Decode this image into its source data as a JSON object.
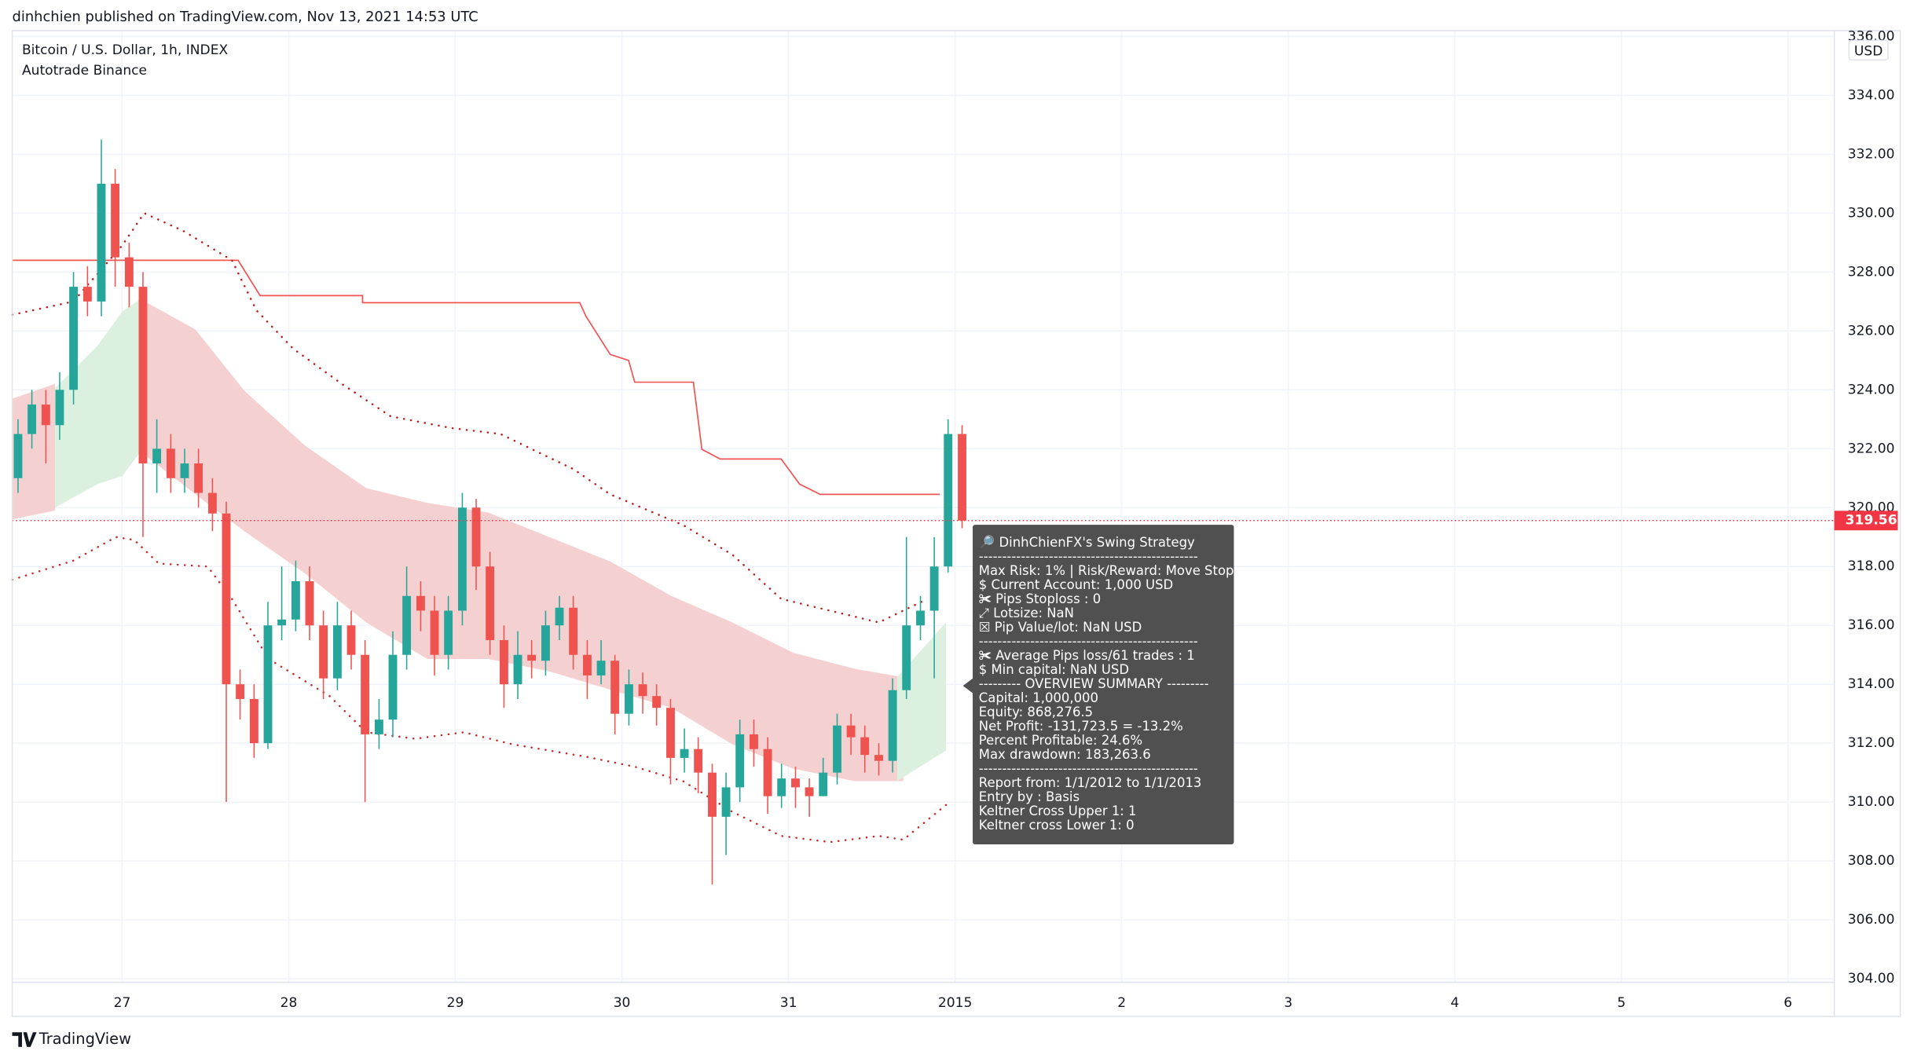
{
  "header": {
    "byline": "dinhchien published on TradingView.com, Nov 13, 2021 14:53 UTC",
    "brand": "TradingView"
  },
  "chart_data": {
    "type": "candlestick",
    "title": "Bitcoin / U.S. Dollar, 1h, INDEX",
    "subtitle": "Autotrade Binance",
    "y_unit": "USD",
    "up_color": "#26a69a",
    "down_color": "#ef5350",
    "grid": true,
    "xlim": [
      -0.66,
      10.278
    ],
    "xticks": [
      {
        "value": 0,
        "label": "27"
      },
      {
        "value": 1,
        "label": "28"
      },
      {
        "value": 2,
        "label": "29"
      },
      {
        "value": 3,
        "label": "30"
      },
      {
        "value": 4,
        "label": "31"
      },
      {
        "value": 5,
        "label": "2015"
      },
      {
        "value": 6,
        "label": "2"
      },
      {
        "value": 7,
        "label": "3"
      },
      {
        "value": 8,
        "label": "4"
      },
      {
        "value": 9,
        "label": "5"
      },
      {
        "value": 10,
        "label": "6"
      }
    ],
    "ylim": [
      303.88,
      336.2
    ],
    "yticks": [
      {
        "value": 304,
        "label": "304.00"
      },
      {
        "value": 306,
        "label": "306.00"
      },
      {
        "value": 308,
        "label": "308.00"
      },
      {
        "value": 310,
        "label": "310.00"
      },
      {
        "value": 312,
        "label": "312.00"
      },
      {
        "value": 314,
        "label": "314.00"
      },
      {
        "value": 316,
        "label": "316.00"
      },
      {
        "value": 318,
        "label": "318.00"
      },
      {
        "value": 320,
        "label": "320.00"
      },
      {
        "value": 322,
        "label": "322.00"
      },
      {
        "value": 324,
        "label": "324.00"
      },
      {
        "value": 326,
        "label": "326.00"
      },
      {
        "value": 328,
        "label": "328.00"
      },
      {
        "value": 330,
        "label": "330.00"
      },
      {
        "value": 332,
        "label": "332.00"
      },
      {
        "value": 334,
        "label": "334.00"
      },
      {
        "value": 336,
        "label": "336.00"
      }
    ],
    "x": [
      -0.625,
      -0.542,
      -0.458,
      -0.375,
      -0.292,
      -0.208,
      -0.125,
      -0.042,
      0.042,
      0.125,
      0.208,
      0.292,
      0.375,
      0.458,
      0.542,
      0.625,
      0.708,
      0.792,
      0.875,
      0.958,
      1.042,
      1.125,
      1.208,
      1.292,
      1.375,
      1.458,
      1.542,
      1.625,
      1.708,
      1.792,
      1.875,
      1.958,
      2.042,
      2.125,
      2.208,
      2.292,
      2.375,
      2.458,
      2.542,
      2.625,
      2.708,
      2.792,
      2.875,
      2.958,
      3.042,
      3.125,
      3.208,
      3.292,
      3.375,
      3.458,
      3.542,
      3.625,
      3.708,
      3.792,
      3.875,
      3.958,
      4.042,
      4.125,
      4.208,
      4.292,
      4.375,
      4.458,
      4.542,
      4.625,
      4.708,
      4.792,
      4.875,
      4.958,
      5.042
    ],
    "open": [
      321,
      322.5,
      323.5,
      322.8,
      324,
      327.5,
      327,
      331,
      328.5,
      327.5,
      321.5,
      322,
      321,
      321.5,
      320.5,
      319.8,
      314,
      313.5,
      312,
      316,
      316.2,
      317.5,
      316,
      314.2,
      316,
      315,
      312.3,
      312.8,
      315,
      317,
      316.5,
      315,
      316.5,
      320,
      318,
      315.5,
      314,
      315,
      314.8,
      316,
      316.6,
      315,
      314.3,
      314.8,
      313,
      314,
      313.6,
      313.2,
      311.5,
      311.8,
      311,
      309.5,
      310.5,
      312.3,
      311.8,
      310.2,
      310.8,
      310.5,
      310.2,
      311,
      312.6,
      312.2,
      311.6,
      311.4,
      313.8,
      316,
      316.5,
      318,
      322.5
    ],
    "high": [
      323,
      324,
      324,
      324.6,
      328,
      328.2,
      332.5,
      331.5,
      329,
      328,
      323,
      322.5,
      322,
      322,
      321,
      320.2,
      314.5,
      314,
      316.8,
      318,
      318.2,
      318,
      316.5,
      316.8,
      316.5,
      315.5,
      313.5,
      315.8,
      318,
      317.5,
      317,
      317,
      320.5,
      320.3,
      318.5,
      316,
      315.8,
      315.5,
      316.5,
      317,
      317,
      315.5,
      315.5,
      315,
      314.5,
      314.4,
      314,
      313.5,
      312.5,
      312.2,
      311.3,
      311,
      312.8,
      312.8,
      312.2,
      311.3,
      311.2,
      310.8,
      311.5,
      313,
      313,
      312.6,
      312,
      314.2,
      319,
      317,
      319,
      323,
      322.8
    ],
    "low": [
      320.5,
      322,
      321.5,
      322.3,
      323.5,
      326.5,
      326.5,
      327.5,
      326.8,
      319,
      320.5,
      320.5,
      320.5,
      320,
      319.2,
      310,
      312.8,
      311.5,
      311.8,
      315.5,
      315.8,
      315.5,
      313.5,
      313.8,
      314.5,
      310,
      311.8,
      312.2,
      314.5,
      315.8,
      314.3,
      314.5,
      316,
      317.2,
      315,
      313.2,
      313.5,
      314.2,
      314.3,
      315.5,
      314.5,
      313.5,
      314,
      312.3,
      312.6,
      313,
      312.6,
      310.6,
      311,
      310.3,
      307.2,
      308.2,
      310,
      311.2,
      309.6,
      309.8,
      309.8,
      309.5,
      310.2,
      310.6,
      311.6,
      311,
      310.9,
      311,
      313.5,
      315.5,
      314.2,
      317.8,
      319.3
    ],
    "close": [
      322.5,
      323.5,
      322.8,
      324,
      327.5,
      327,
      331,
      328.5,
      327.5,
      321.5,
      322,
      321,
      321.5,
      320.5,
      319.8,
      314,
      313.5,
      312,
      316,
      316.2,
      317.5,
      316,
      314.2,
      316,
      315,
      312.3,
      312.8,
      315,
      317,
      316.5,
      315,
      316.5,
      320,
      318,
      315.5,
      314,
      315,
      314.8,
      316,
      316.6,
      315,
      314.3,
      314.8,
      313,
      314,
      313.6,
      313.2,
      311.5,
      311.8,
      311,
      309.5,
      310.5,
      312.3,
      311.8,
      310.2,
      310.8,
      310.5,
      310.2,
      311,
      312.6,
      312.2,
      311.6,
      311.4,
      313.8,
      316,
      316.5,
      318,
      322.5,
      319.56
    ],
    "areas": [
      {
        "color": "#f5d0d0",
        "x": [
          -0.659,
          -0.403
        ],
        "upper": [
          323.7,
          324.2
        ],
        "lower": [
          319.6,
          319.9
        ]
      },
      {
        "color": "#f5d0d0",
        "x": [
          0.11,
          0.44,
          0.733,
          1.099,
          1.465,
          1.832,
          2.198,
          2.564,
          2.93,
          3.297,
          3.663,
          4.029,
          4.396,
          4.689
        ],
        "upper": [
          327.08,
          326.05,
          323.97,
          322.1,
          320.66,
          320.16,
          319.83,
          319.0,
          318.17,
          317.0,
          316.1,
          315.07,
          314.53,
          314.24
        ],
        "lower": [
          321.9,
          320.45,
          319.2,
          317.76,
          316.1,
          314.86,
          314.86,
          314.44,
          313.82,
          313.2,
          311.96,
          311.13,
          310.71,
          310.71
        ]
      },
      {
        "color": "#dcf0df",
        "x": [
          -0.403,
          -0.147,
          0,
          0.11
        ],
        "upper": [
          324.06,
          325.5,
          326.66,
          327.08
        ],
        "lower": [
          320.0,
          320.8,
          321.07,
          321.9
        ]
      },
      {
        "color": "#dcf0df",
        "x": [
          4.652,
          4.945
        ],
        "upper": [
          314.24,
          316.1
        ],
        "lower": [
          310.71,
          311.75
        ]
      }
    ],
    "lines": [
      {
        "color": "#f05454",
        "style": "solid",
        "x": [
          -0.659,
          0.696,
          0.828,
          1.443,
          1.443,
          2.747,
          2.784,
          2.93,
          3.04,
          3.077,
          3.429,
          3.48,
          3.59,
          3.956,
          4.066,
          4.19,
          4.908
        ],
        "values": [
          328.4,
          328.4,
          327.2,
          327.2,
          326.96,
          326.96,
          326.5,
          325.2,
          325,
          324.26,
          324.26,
          321.98,
          321.65,
          321.65,
          320.8,
          320.45,
          320.45
        ]
      },
      {
        "color": "#b71c1c",
        "style": "dotted",
        "x": [
          -0.659,
          -0.293,
          0,
          0.132,
          0.366,
          0.659,
          0.806,
          1.026,
          1.319,
          1.612,
          1.978,
          2.271,
          2.491,
          2.711,
          2.93,
          3.37,
          3.663,
          3.956,
          4.249,
          4.542,
          4.835
        ],
        "values": [
          326.55,
          327.0,
          328.9,
          330.0,
          329.4,
          328.4,
          326.7,
          325.4,
          324.2,
          323.1,
          322.7,
          322.5,
          321.9,
          321.3,
          320.45,
          319.4,
          318.4,
          316.9,
          316.5,
          316.1,
          316.9
        ]
      },
      {
        "color": "#c62828",
        "style": "dotted",
        "x": [
          -0.659,
          -0.293,
          -0.037,
          0.073,
          0.22,
          0.513,
          0.659,
          0.879,
          1.245,
          1.465,
          1.758,
          2.051,
          2.344,
          2.784,
          3.077,
          3.37,
          3.663,
          3.956,
          4.249,
          4.542,
          4.689,
          4.945
        ],
        "values": [
          317.55,
          318.2,
          319.0,
          318.9,
          318.1,
          318.0,
          316.9,
          314.86,
          313.6,
          312.37,
          312.15,
          312.37,
          311.96,
          311.54,
          311.2,
          310.7,
          309.67,
          308.85,
          308.64,
          308.85,
          308.72,
          309.9
        ]
      }
    ],
    "last_price": 319.56,
    "last_price_color": "#f23645",
    "annotation_lines": [
      "🔎 DinhChienFX's Swing Strategy",
      "-----------------------------------------------",
      "Max Risk: 1% | Risk/Reward: Move Stop",
      " $ Current Account: 1,000 USD",
      " ✀ Pips Stoploss : 0",
      " ⤢ Lotsize: NaN",
      " ☒ Pip Value/lot: NaN USD",
      "-----------------------------------------------",
      " ✀ Average Pips loss/61 trades : 1",
      " $ Min capital: NaN USD",
      "--------- OVERVIEW SUMMARY ---------",
      " Capital: 1,000,000",
      " Equity: 868,276.5",
      " Net Profit: -131,723.5 = -13.2%",
      " Percent Profitable: 24.6%",
      " Max drawdown: 183,263.6",
      "-----------------------------------------------",
      "Report from: 1/1/2012 to 1/1/2013",
      " Entry by : Basis",
      " Keltner Cross Upper 1: 1",
      " Keltner cross Lower 1: 0"
    ]
  }
}
